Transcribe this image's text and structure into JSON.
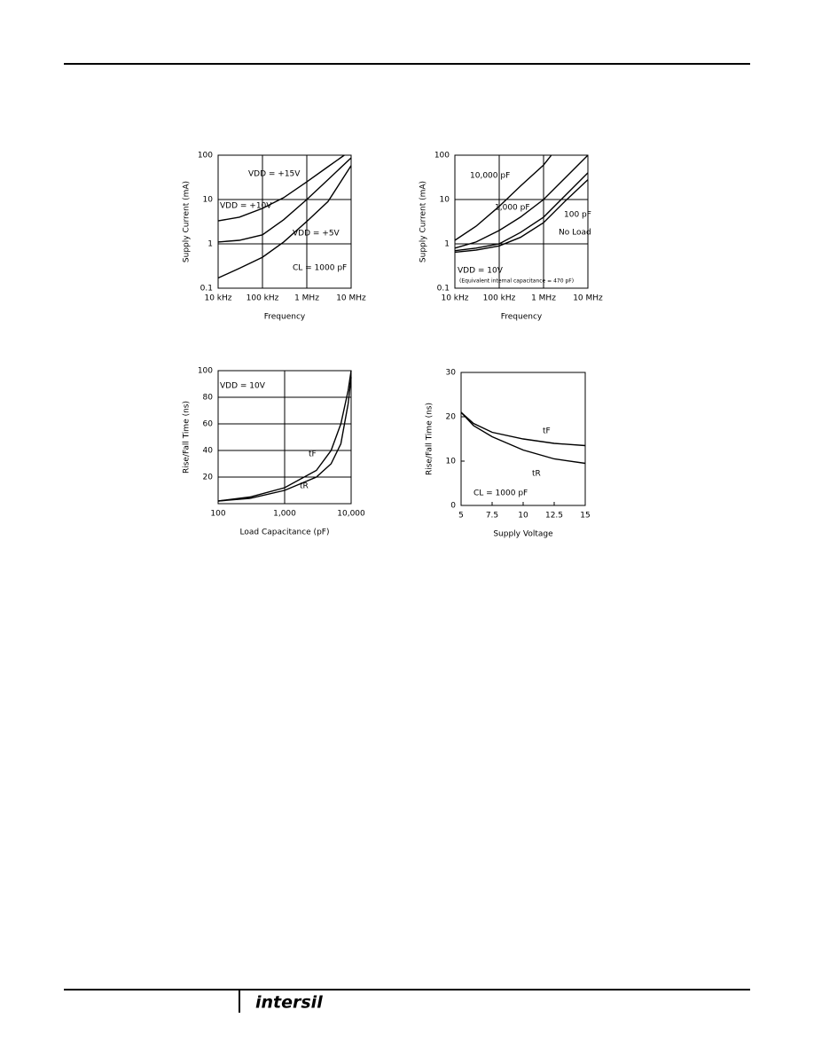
{
  "chart_data": [
    {
      "type": "line",
      "xscale": "log",
      "yscale": "log",
      "grid": true,
      "xlabel": "Frequency",
      "ylabel": "Supply Current (mA)",
      "xlim": [
        10000,
        10000000
      ],
      "ylim": [
        0.1,
        100
      ],
      "xticks": [
        {
          "value": 10000,
          "label": "10 kHz"
        },
        {
          "value": 100000,
          "label": "100 kHz"
        },
        {
          "value": 1000000,
          "label": "1 MHz"
        },
        {
          "value": 10000000,
          "label": "10 MHz"
        }
      ],
      "yticks": [
        0.1,
        1,
        10,
        100
      ],
      "annotations": [
        "VDD = +15V",
        "VDD = +10V",
        "VDD = +5V",
        "CL = 1000 pF"
      ],
      "series": [
        {
          "color": "#000000",
          "x": [
            10000,
            30000,
            100000,
            300000,
            1000000,
            3000000,
            7000000
          ],
          "values": [
            3.3,
            4,
            6.3,
            11,
            25,
            55,
            100
          ]
        },
        {
          "color": "#000000",
          "x": [
            10000,
            30000,
            100000,
            300000,
            1000000,
            3000000,
            10000000
          ],
          "values": [
            1.1,
            1.2,
            1.6,
            3.5,
            10,
            28,
            87
          ]
        },
        {
          "color": "#000000",
          "x": [
            10000,
            30000,
            100000,
            300000,
            1000000,
            3000000,
            10000000
          ],
          "values": [
            0.17,
            0.28,
            0.5,
            1.1,
            3.2,
            9,
            58
          ]
        }
      ]
    },
    {
      "type": "line",
      "xscale": "log",
      "yscale": "log",
      "grid": true,
      "xlabel": "Frequency",
      "ylabel": "Supply Current (mA)",
      "xlim": [
        10000,
        10000000
      ],
      "ylim": [
        0.1,
        100
      ],
      "xticks": [
        {
          "value": 10000,
          "label": "10 kHz"
        },
        {
          "value": 100000,
          "label": "100 kHz"
        },
        {
          "value": 1000000,
          "label": "1 MHz"
        },
        {
          "value": 10000000,
          "label": "10 MHz"
        }
      ],
      "yticks": [
        0.1,
        1,
        10,
        100
      ],
      "annotations": [
        "10,000 pF",
        "1,000 pF",
        "100 pF",
        "No Load",
        "VDD = 10V",
        "(Equivalent internal capacitance = 470 pF)"
      ],
      "series": [
        {
          "color": "#000000",
          "x": [
            10000,
            30000,
            100000,
            300000,
            1000000,
            1500000
          ],
          "values": [
            1.2,
            2.5,
            7,
            20,
            60,
            100
          ]
        },
        {
          "color": "#000000",
          "x": [
            10000,
            30000,
            100000,
            300000,
            1000000,
            3000000,
            10000000
          ],
          "values": [
            0.8,
            1.1,
            2,
            4,
            10,
            30,
            100
          ]
        },
        {
          "color": "#000000",
          "x": [
            10000,
            30000,
            100000,
            300000,
            1000000,
            3000000,
            10000000
          ],
          "values": [
            0.7,
            0.8,
            1,
            1.8,
            4,
            12,
            40
          ]
        },
        {
          "color": "#000000",
          "x": [
            10000,
            30000,
            100000,
            300000,
            1000000,
            3000000,
            10000000
          ],
          "values": [
            0.65,
            0.72,
            0.9,
            1.4,
            3,
            9,
            28
          ]
        }
      ]
    },
    {
      "type": "line",
      "xscale": "log",
      "yscale": "linear",
      "grid": true,
      "xlabel": "Load Capacitance (pF)",
      "ylabel": "Rise/Fall Time (ns)",
      "xlim": [
        100,
        10000
      ],
      "ylim": [
        0,
        100
      ],
      "xticks": [
        100,
        {
          "value": 1000,
          "label": "1,000"
        },
        {
          "value": 10000,
          "label": "10,000"
        }
      ],
      "yticks": [
        20,
        40,
        60,
        80,
        100
      ],
      "annotations": [
        "VDD = 10V",
        "tF",
        "tR"
      ],
      "series": [
        {
          "color": "#000000",
          "x": [
            100,
            300,
            1000,
            3000,
            5000,
            7000,
            9000,
            10000
          ],
          "values": [
            2,
            5,
            12,
            25,
            40,
            60,
            85,
            100
          ]
        },
        {
          "color": "#000000",
          "x": [
            100,
            300,
            1000,
            3000,
            5000,
            7000,
            9000,
            10000
          ],
          "values": [
            2,
            4,
            10,
            20,
            30,
            45,
            75,
            95
          ]
        }
      ]
    },
    {
      "type": "line",
      "xscale": "linear",
      "yscale": "linear",
      "grid": false,
      "xlabel": "Supply Voltage",
      "ylabel": "Rise/Fall Time (ns)",
      "xlim": [
        5,
        15
      ],
      "ylim": [
        0,
        30
      ],
      "xticks": [
        5,
        7.5,
        10,
        12.5,
        15
      ],
      "yticks": [
        0,
        10,
        20,
        30
      ],
      "annotations": [
        "tF",
        "tR",
        "CL = 1000 pF"
      ],
      "series": [
        {
          "color": "#000000",
          "x": [
            5,
            6,
            7.5,
            10,
            12.5,
            15
          ],
          "values": [
            21,
            18.5,
            16.5,
            15,
            14,
            13.5
          ]
        },
        {
          "color": "#000000",
          "x": [
            5,
            6,
            7.5,
            10,
            12.5,
            15
          ],
          "values": [
            21,
            18,
            15.5,
            12.5,
            10.5,
            9.5
          ]
        }
      ]
    }
  ],
  "footer": {
    "logo": "intersil"
  }
}
